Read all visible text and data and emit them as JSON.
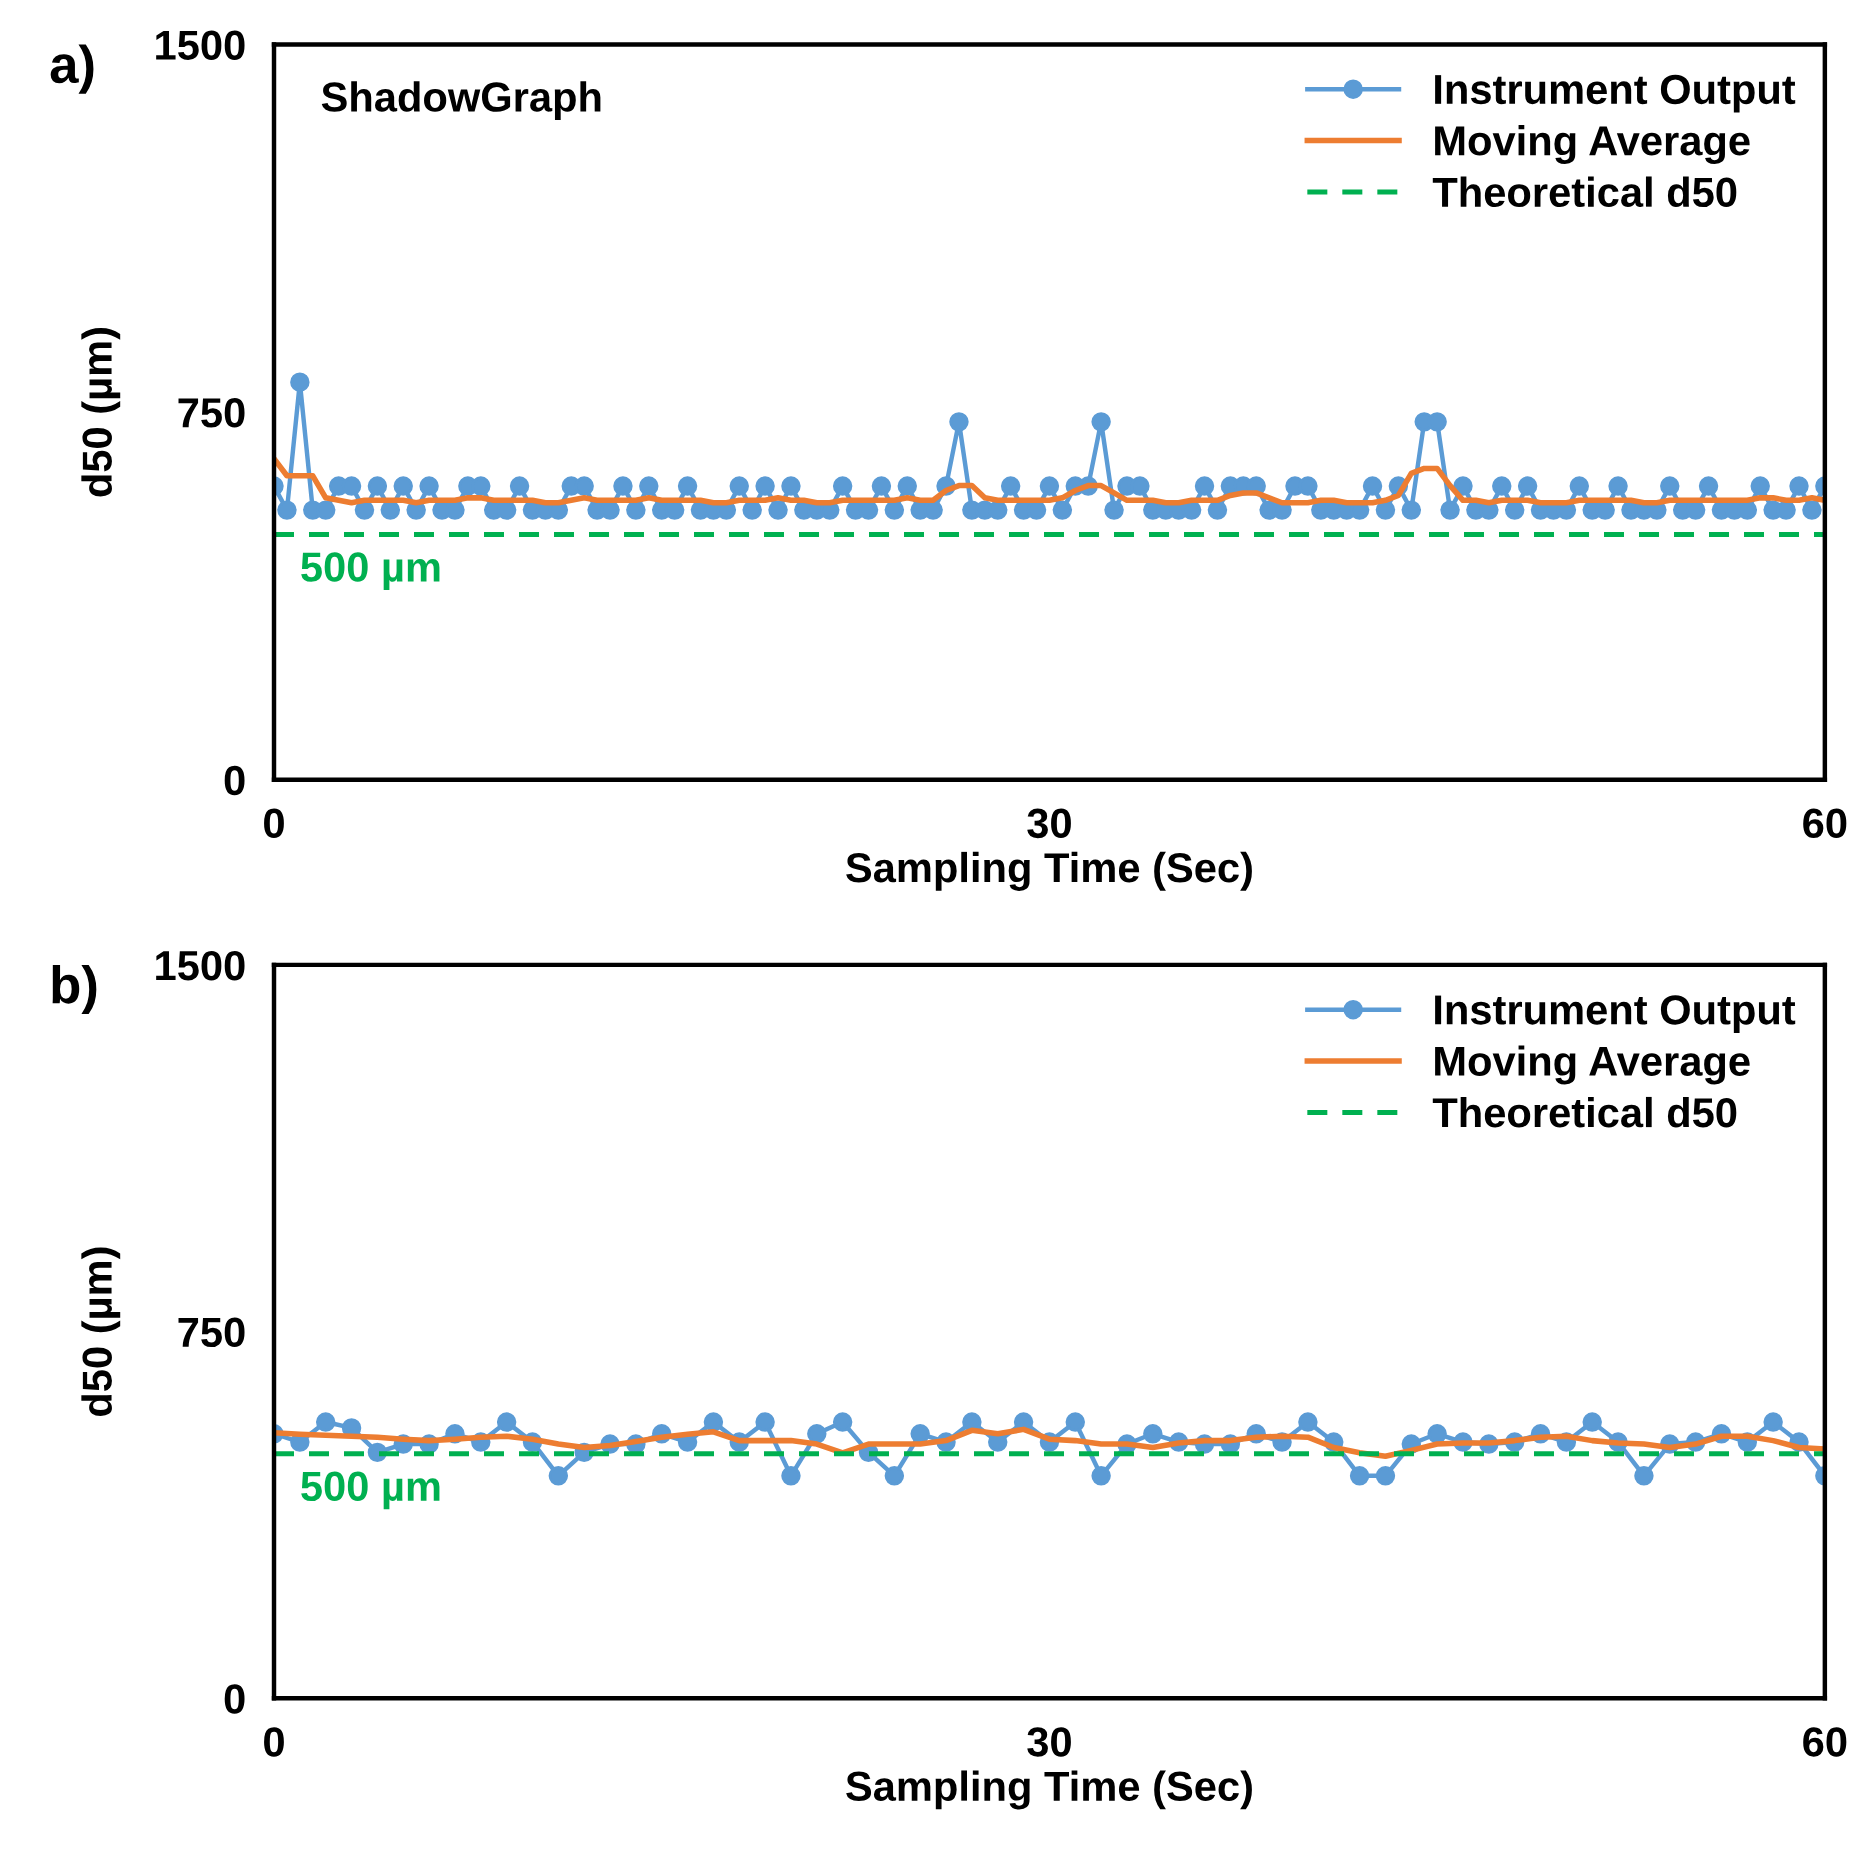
{
  "chart_data": [
    {
      "type": "line",
      "title": "ShadowGraph",
      "xlabel": "Sampling Time (Sec)",
      "ylabel": "d50 (µm)",
      "x": [
        0,
        0.5,
        1,
        1.5,
        2,
        2.5,
        3,
        3.5,
        4,
        4.5,
        5,
        5.5,
        6,
        6.5,
        7,
        7.5,
        8,
        8.5,
        9,
        9.5,
        10,
        10.5,
        11,
        11.5,
        12,
        12.5,
        13,
        13.5,
        14,
        14.5,
        15,
        15.5,
        16,
        16.5,
        17,
        17.5,
        18,
        18.5,
        19,
        19.5,
        20,
        20.5,
        21,
        21.5,
        22,
        22.5,
        23,
        23.5,
        24,
        24.5,
        25,
        25.5,
        26,
        26.5,
        27,
        27.5,
        28,
        28.5,
        29,
        29.5,
        30,
        30.5,
        31,
        31.5,
        32,
        32.5,
        33,
        33.5,
        34,
        34.5,
        35,
        35.5,
        36,
        36.5,
        37,
        37.5,
        38,
        38.5,
        39,
        39.5,
        40,
        40.5,
        41,
        41.5,
        42,
        42.5,
        43,
        43.5,
        44,
        44.5,
        45,
        45.5,
        46,
        46.5,
        47,
        47.5,
        48,
        48.5,
        49,
        49.5,
        50,
        50.5,
        51,
        51.5,
        52,
        52.5,
        53,
        53.5,
        54,
        54.5,
        55,
        55.5,
        56,
        56.5,
        57,
        57.5,
        58,
        58.5,
        59,
        59.5,
        60
      ],
      "series": [
        {
          "name": "Instrument Output",
          "color": "#5b9bd5",
          "marker": "circle",
          "values": [
            599,
            550,
            811,
            550,
            550,
            599,
            599,
            550,
            599,
            550,
            599,
            550,
            599,
            550,
            550,
            599,
            599,
            550,
            550,
            599,
            550,
            550,
            550,
            599,
            599,
            550,
            550,
            599,
            550,
            599,
            550,
            550,
            599,
            550,
            550,
            550,
            599,
            550,
            599,
            550,
            599,
            550,
            550,
            550,
            599,
            550,
            550,
            599,
            550,
            599,
            550,
            550,
            599,
            730,
            550,
            550,
            550,
            599,
            550,
            550,
            599,
            550,
            599,
            599,
            730,
            550,
            599,
            599,
            550,
            550,
            550,
            550,
            599,
            550,
            599,
            599,
            599,
            550,
            550,
            599,
            599,
            550,
            550,
            550,
            550,
            599,
            550,
            599,
            550,
            730,
            730,
            550,
            599,
            550,
            550,
            599,
            550,
            599,
            550,
            550,
            550,
            599,
            550,
            550,
            599,
            550,
            550,
            550,
            599,
            550,
            550,
            599,
            550,
            550,
            550,
            599,
            550,
            550,
            599,
            550,
            599
          ]
        },
        {
          "name": "Moving Average",
          "color": "#ed7d31",
          "marker": "none",
          "values": [
            655,
            620,
            620,
            620,
            575,
            570,
            565,
            570,
            570,
            570,
            570,
            565,
            570,
            570,
            570,
            575,
            575,
            570,
            570,
            570,
            570,
            565,
            565,
            570,
            575,
            570,
            570,
            570,
            570,
            575,
            570,
            570,
            570,
            570,
            565,
            565,
            570,
            570,
            570,
            575,
            570,
            570,
            565,
            565,
            570,
            570,
            570,
            570,
            570,
            575,
            570,
            570,
            590,
            600,
            600,
            575,
            570,
            570,
            570,
            570,
            570,
            575,
            590,
            600,
            600,
            585,
            570,
            570,
            570,
            565,
            565,
            570,
            570,
            570,
            580,
            585,
            585,
            575,
            565,
            565,
            565,
            570,
            570,
            565,
            565,
            565,
            570,
            580,
            625,
            635,
            635,
            600,
            570,
            570,
            565,
            570,
            570,
            570,
            565,
            565,
            565,
            570,
            570,
            570,
            570,
            570,
            565,
            565,
            570,
            570,
            570,
            570,
            570,
            570,
            570,
            575,
            575,
            570,
            570,
            575,
            570
          ]
        }
      ],
      "ref_lines": [
        {
          "axis": "y",
          "value": 500,
          "label": "Theoretical d50",
          "color": "#00b050",
          "line_style": "dashed"
        }
      ],
      "annotations": [
        "a)",
        {
          "text": "500 µm",
          "x": 1,
          "y": 500
        }
      ],
      "xlim": [
        0,
        60
      ],
      "xticks": [
        0,
        30,
        60
      ],
      "ylim": [
        0,
        1500
      ],
      "yticks": [
        0,
        750,
        1500
      ],
      "grid": false,
      "legend": "top right"
    },
    {
      "type": "line",
      "xlabel": "Sampling Time (Sec)",
      "ylabel": "d50 (µm)",
      "x": [
        0,
        1,
        2,
        3,
        4,
        5,
        6,
        7,
        8,
        9,
        10,
        11,
        12,
        13,
        14,
        15,
        16,
        17,
        18,
        19,
        20,
        21,
        22,
        23,
        24,
        25,
        26,
        27,
        28,
        29,
        30,
        31,
        32,
        33,
        34,
        35,
        36,
        37,
        38,
        39,
        40,
        41,
        42,
        43,
        44,
        45,
        46,
        47,
        48,
        49,
        50,
        51,
        52,
        53,
        54,
        55,
        56,
        57,
        58,
        59,
        60
      ],
      "series": [
        {
          "name": "Instrument Output",
          "color": "#5b9bd5",
          "marker": "circle",
          "values": [
            541,
            524,
            565,
            553,
            503,
            520,
            520,
            541,
            524,
            565,
            524,
            455,
            503,
            520,
            520,
            541,
            524,
            565,
            524,
            565,
            455,
            541,
            565,
            503,
            455,
            541,
            524,
            565,
            524,
            565,
            524,
            565,
            455,
            520,
            541,
            524,
            520,
            520,
            541,
            524,
            565,
            524,
            455,
            455,
            520,
            541,
            524,
            520,
            524,
            541,
            524,
            565,
            524,
            455,
            520,
            524,
            541,
            524,
            565,
            524,
            455
          ]
        },
        {
          "name": "Moving Average",
          "color": "#ed7d31",
          "marker": "none",
          "values": [
            543,
            540,
            538,
            536,
            534,
            530,
            527,
            530,
            534,
            536,
            530,
            520,
            513,
            517,
            525,
            534,
            540,
            545,
            527,
            527,
            527,
            520,
            502,
            520,
            520,
            520,
            527,
            548,
            541,
            550,
            530,
            527,
            520,
            520,
            513,
            522,
            527,
            527,
            534,
            536,
            534,
            513,
            502,
            495,
            507,
            520,
            522,
            522,
            527,
            534,
            536,
            527,
            522,
            520,
            513,
            520,
            536,
            536,
            527,
            513,
            510
          ]
        }
      ],
      "ref_lines": [
        {
          "axis": "y",
          "value": 500,
          "label": "Theoretical d50",
          "color": "#00b050",
          "line_style": "dashed"
        }
      ],
      "annotations": [
        "b)",
        {
          "text": "500 µm",
          "x": 1,
          "y": 500
        }
      ],
      "xlim": [
        0,
        60
      ],
      "xticks": [
        0,
        30,
        60
      ],
      "ylim": [
        0,
        1500
      ],
      "yticks": [
        0,
        750,
        1500
      ],
      "grid": false,
      "legend": "top right"
    }
  ]
}
